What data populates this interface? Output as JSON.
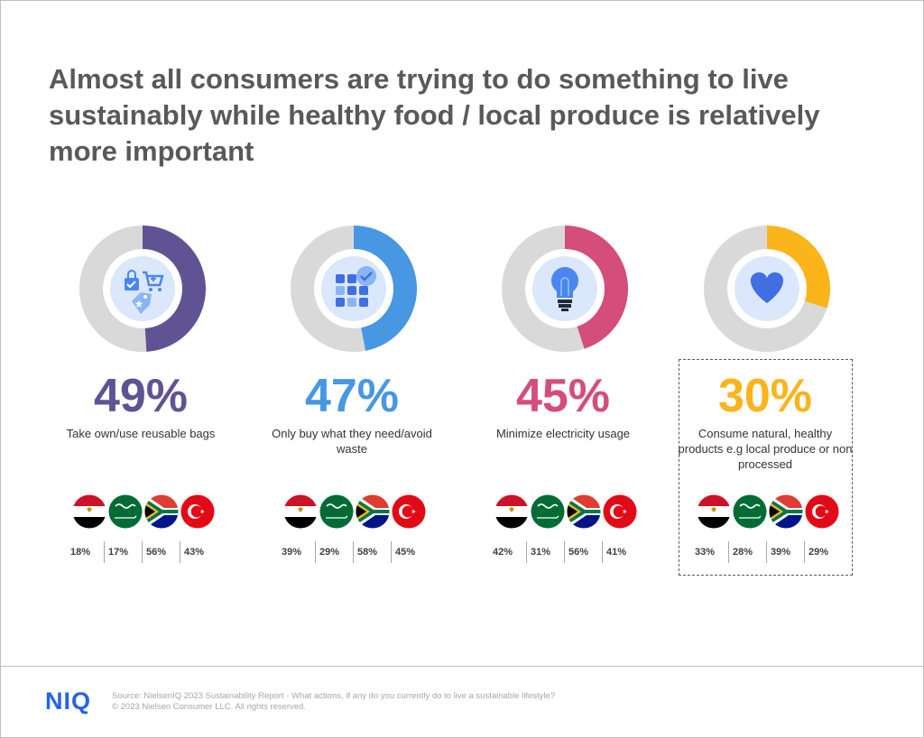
{
  "title": "Almost all consumers are trying to do something to live sustainably while healthy food / local produce is relatively more important",
  "chart_data": {
    "type": "pie",
    "items": [
      {
        "value": 49,
        "label": "49%",
        "description": "Take own/use reusable bags",
        "color": "#5f5394",
        "icon": "shopping-bag-cart-icon",
        "highlighted": false,
        "countries": [
          {
            "flag": "egypt-flag",
            "value": "18%"
          },
          {
            "flag": "saudi-arabia-flag",
            "value": "17%"
          },
          {
            "flag": "south-africa-flag",
            "value": "56%"
          },
          {
            "flag": "turkey-flag",
            "value": "43%"
          }
        ]
      },
      {
        "value": 47,
        "label": "47%",
        "description": "Only buy what they need/avoid waste",
        "color": "#4797e3",
        "icon": "checklist-grid-icon",
        "highlighted": false,
        "countries": [
          {
            "flag": "egypt-flag",
            "value": "39%"
          },
          {
            "flag": "saudi-arabia-flag",
            "value": "29%"
          },
          {
            "flag": "south-africa-flag",
            "value": "58%"
          },
          {
            "flag": "turkey-flag",
            "value": "45%"
          }
        ]
      },
      {
        "value": 45,
        "label": "45%",
        "description": "Minimize electricity usage",
        "color": "#d44d7b",
        "icon": "lightbulb-icon",
        "highlighted": false,
        "countries": [
          {
            "flag": "egypt-flag",
            "value": "42%"
          },
          {
            "flag": "saudi-arabia-flag",
            "value": "31%"
          },
          {
            "flag": "south-africa-flag",
            "value": "56%"
          },
          {
            "flag": "turkey-flag",
            "value": "41%"
          }
        ]
      },
      {
        "value": 30,
        "label": "30%",
        "description": "Consume natural,  healthy products e.g local produce or non processed",
        "color": "#fbb41a",
        "icon": "heart-icon",
        "highlighted": true,
        "countries": [
          {
            "flag": "egypt-flag",
            "value": "33%"
          },
          {
            "flag": "saudi-arabia-flag",
            "value": "28%"
          },
          {
            "flag": "south-africa-flag",
            "value": "39%"
          },
          {
            "flag": "turkey-flag",
            "value": "29%"
          }
        ]
      }
    ],
    "track_color": "#d9d9d9"
  },
  "footer": {
    "logo": "NIQ",
    "source": "Source: NielsenIQ 2023 Sustainability Report - What actions, if any do you currently do to live a sustainable lifestyle?",
    "copyright": "© 2023 Nielsen Consumer LLC. All rights reserved."
  }
}
